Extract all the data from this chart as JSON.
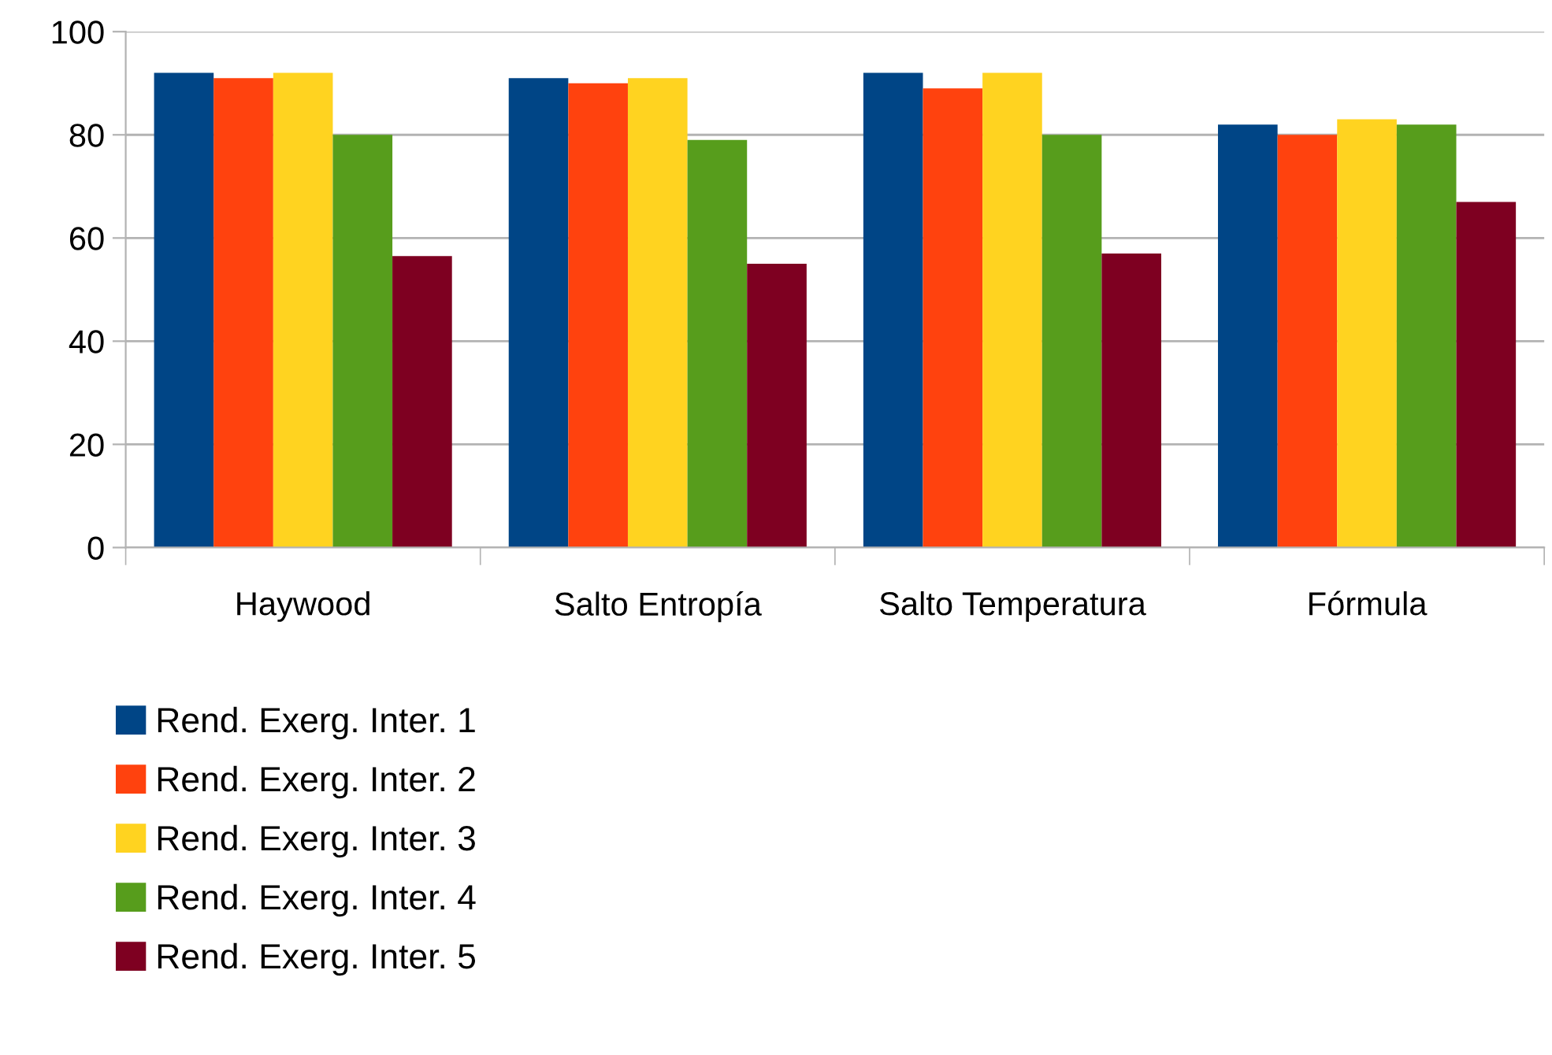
{
  "chart_data": {
    "type": "bar",
    "categories": [
      "Haywood",
      "Salto Entropía",
      "Salto Temperatura",
      "Fórmula"
    ],
    "series": [
      {
        "name": "Rend. Exerg. Inter. 1",
        "color": "#004586",
        "values": [
          92,
          91,
          92,
          82
        ]
      },
      {
        "name": "Rend. Exerg. Inter. 2",
        "color": "#ff420e",
        "values": [
          91,
          90,
          89,
          80
        ]
      },
      {
        "name": "Rend. Exerg. Inter. 3",
        "color": "#ffd320",
        "values": [
          92,
          91,
          92,
          83
        ]
      },
      {
        "name": "Rend. Exerg. Inter. 4",
        "color": "#579d1c",
        "values": [
          80,
          79,
          80,
          82
        ]
      },
      {
        "name": "Rend. Exerg. Inter. 5",
        "color": "#7e0021",
        "values": [
          56.5,
          55,
          57,
          67
        ]
      }
    ],
    "ylim": [
      0,
      100
    ],
    "yticks": [
      0,
      20,
      40,
      60,
      80,
      100
    ],
    "grid": "y",
    "legend": "bottom left"
  }
}
